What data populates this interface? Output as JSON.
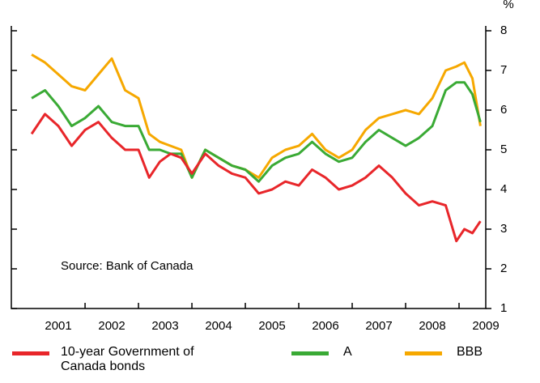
{
  "chart_data": {
    "type": "line",
    "unit_label": "%",
    "annotation": "Source: Bank of Canada",
    "x": [
      2001.0,
      2001.25,
      2001.5,
      2001.75,
      2002.0,
      2002.25,
      2002.5,
      2002.75,
      2003.0,
      2003.2,
      2003.4,
      2003.6,
      2003.8,
      2004.0,
      2004.25,
      2004.5,
      2004.75,
      2005.0,
      2005.25,
      2005.5,
      2005.75,
      2006.0,
      2006.25,
      2006.5,
      2006.75,
      2007.0,
      2007.25,
      2007.5,
      2007.75,
      2008.0,
      2008.25,
      2008.5,
      2008.75,
      2008.95,
      2009.1,
      2009.25,
      2009.4
    ],
    "series": [
      {
        "name": "10-year Government of Canada bonds",
        "color": "#e8262a",
        "values": [
          5.4,
          5.9,
          5.6,
          5.1,
          5.5,
          5.7,
          5.3,
          5.0,
          5.0,
          4.3,
          4.7,
          4.9,
          4.8,
          4.4,
          4.9,
          4.6,
          4.4,
          4.3,
          3.9,
          4.0,
          4.2,
          4.1,
          4.5,
          4.3,
          4.0,
          4.1,
          4.3,
          4.6,
          4.3,
          3.9,
          3.6,
          3.7,
          3.6,
          2.7,
          3.0,
          2.9,
          3.2
        ]
      },
      {
        "name": "A",
        "color": "#3aaa35",
        "values": [
          6.3,
          6.5,
          6.1,
          5.6,
          5.8,
          6.1,
          5.7,
          5.6,
          5.6,
          5.0,
          5.0,
          4.9,
          4.9,
          4.3,
          5.0,
          4.8,
          4.6,
          4.5,
          4.2,
          4.6,
          4.8,
          4.9,
          5.2,
          4.9,
          4.7,
          4.8,
          5.2,
          5.5,
          5.3,
          5.1,
          5.3,
          5.6,
          6.5,
          6.7,
          6.7,
          6.4,
          5.7
        ]
      },
      {
        "name": "BBB",
        "color": "#f6a800",
        "values": [
          7.4,
          7.2,
          6.9,
          6.6,
          6.5,
          6.9,
          7.3,
          6.5,
          6.3,
          5.4,
          5.2,
          5.1,
          5.0,
          4.3,
          5.0,
          4.8,
          4.6,
          4.5,
          4.3,
          4.8,
          5.0,
          5.1,
          5.4,
          5.0,
          4.8,
          5.0,
          5.5,
          5.8,
          5.9,
          6.0,
          5.9,
          6.3,
          7.0,
          7.1,
          7.2,
          6.8,
          5.6
        ]
      }
    ],
    "xlim": [
      2000.62,
      2009.5
    ],
    "xticks": [
      {
        "value": 2001.5,
        "label": "2001"
      },
      {
        "value": 2002.5,
        "label": "2002"
      },
      {
        "value": 2003.5,
        "label": "2003"
      },
      {
        "value": 2004.5,
        "label": "2004"
      },
      {
        "value": 2005.5,
        "label": "2005"
      },
      {
        "value": 2006.5,
        "label": "2006"
      },
      {
        "value": 2007.5,
        "label": "2007"
      },
      {
        "value": 2008.5,
        "label": "2008"
      },
      {
        "value": 2009.5,
        "label": "2009"
      }
    ],
    "ylim": [
      1,
      8
    ],
    "yticks": [
      1,
      2,
      3,
      4,
      5,
      6,
      7,
      8
    ],
    "grid": false
  }
}
